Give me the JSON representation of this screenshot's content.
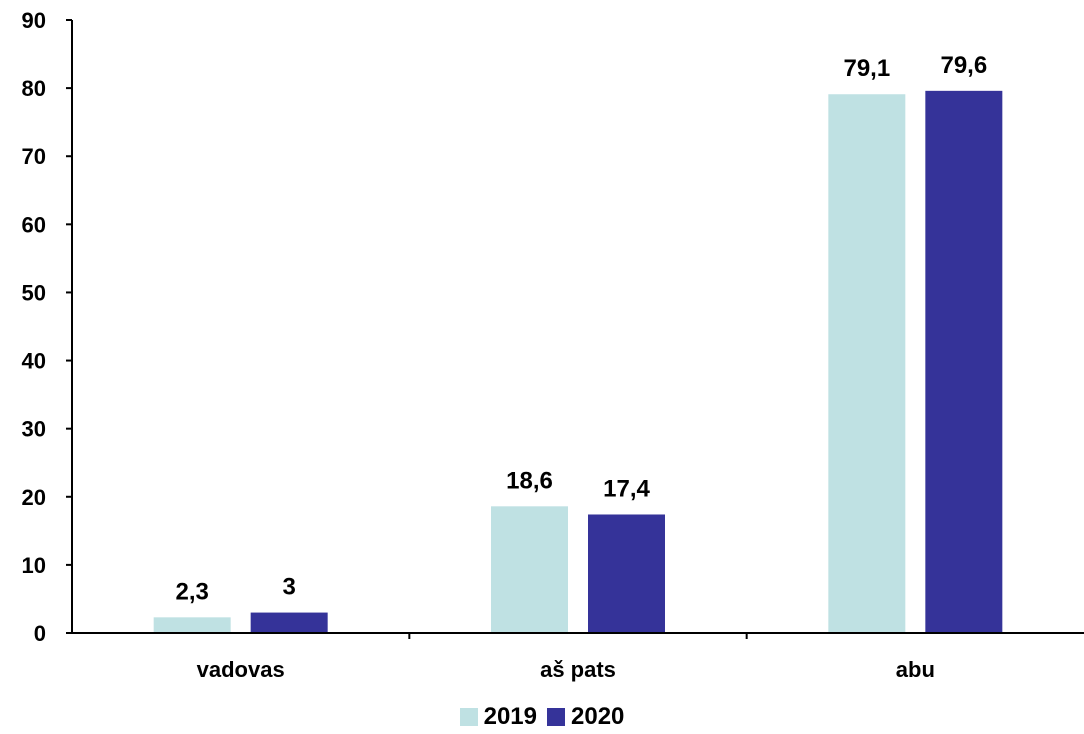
{
  "chart_data": {
    "type": "bar",
    "categories": [
      "vadovas",
      "aš pats",
      "abu"
    ],
    "series": [
      {
        "name": "2019",
        "values": [
          2.3,
          18.6,
          79.1
        ],
        "labels": [
          "2,3",
          "18,6",
          "79,1"
        ],
        "color": "#bfe1e3"
      },
      {
        "name": "2020",
        "values": [
          3,
          17.4,
          79.6
        ],
        "labels": [
          "3",
          "17,4",
          "79,6"
        ],
        "color": "#353399"
      }
    ],
    "ylim": [
      0,
      90
    ],
    "yticks": [
      0,
      10,
      20,
      30,
      40,
      50,
      60,
      70,
      80,
      90
    ],
    "grid": false,
    "legend": "bottom-center",
    "title": "",
    "xlabel": "",
    "ylabel": ""
  }
}
